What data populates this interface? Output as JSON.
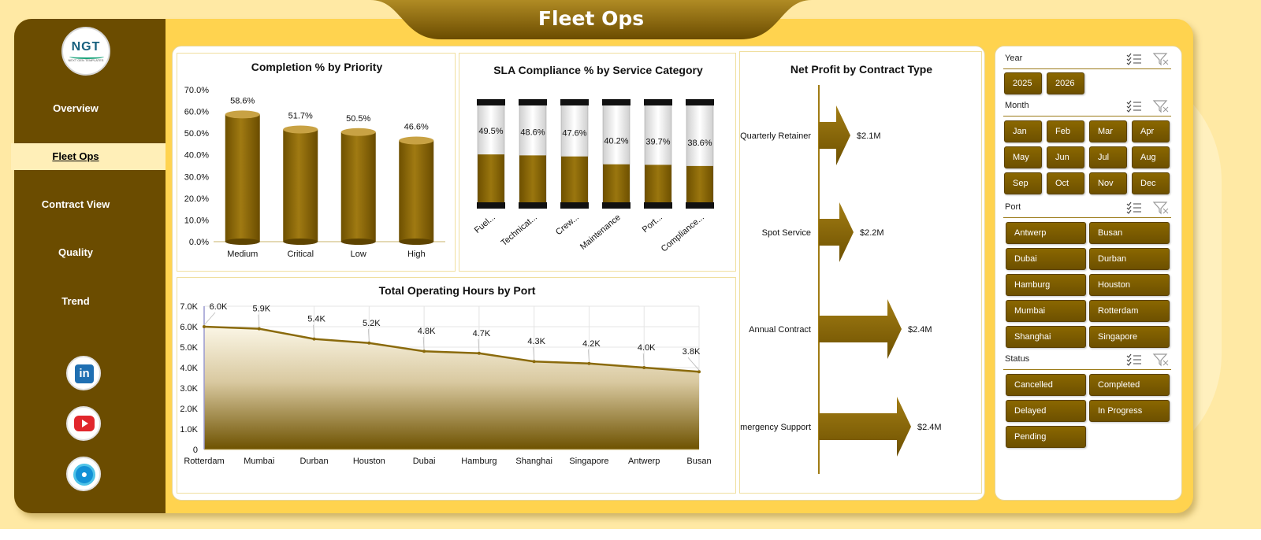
{
  "app": {
    "title": "Fleet Ops",
    "logo_text": "NGT",
    "logo_subtext": "NEXT GEN TEMPLATES"
  },
  "colors": {
    "sidebar": "#6b4c00",
    "accent": "#ffd34f",
    "bar_gold": "#8a6500",
    "button": "#7a5a00"
  },
  "sidebar": {
    "items": [
      {
        "label": "Overview",
        "active": false
      },
      {
        "label": "Fleet Ops",
        "active": true
      },
      {
        "label": "Contract View",
        "active": false
      },
      {
        "label": "Quality",
        "active": false
      },
      {
        "label": "Trend",
        "active": false
      }
    ],
    "social": [
      {
        "icon": "linkedin-icon",
        "glyph": "in"
      },
      {
        "icon": "youtube-icon"
      },
      {
        "icon": "globe-icon"
      }
    ]
  },
  "chart_data": [
    {
      "id": "priority",
      "type": "bar",
      "title": "Completion % by Priority",
      "categories": [
        "Medium",
        "Critical",
        "Low",
        "High"
      ],
      "values": [
        58.6,
        51.7,
        50.5,
        46.6
      ],
      "data_labels": [
        "58.6%",
        "51.7%",
        "50.5%",
        "46.6%"
      ],
      "ylim": [
        0,
        70
      ],
      "yticks": [
        "0.0%",
        "10.0%",
        "20.0%",
        "30.0%",
        "40.0%",
        "50.0%",
        "60.0%",
        "70.0%"
      ]
    },
    {
      "id": "sla",
      "type": "bar",
      "title": "SLA Compliance % by Service Category",
      "categories": [
        "Fuel...",
        "Technicat...",
        "Crew...",
        "Maintenance",
        "Port...",
        "Compliance..."
      ],
      "values": [
        49.5,
        48.6,
        47.6,
        40.2,
        39.7,
        38.6
      ],
      "data_labels": [
        "49.5%",
        "48.6%",
        "47.6%",
        "40.2%",
        "39.7%",
        "38.6%"
      ],
      "ylim": [
        0,
        100
      ]
    },
    {
      "id": "profit",
      "type": "bar",
      "title": "Net Profit by Contract Type",
      "categories": [
        "Quarterly Retainer",
        "Spot Service",
        "Annual Contract",
        "Emergency Support"
      ],
      "values": [
        2.1,
        2.2,
        2.4,
        2.4
      ],
      "data_labels": [
        "$2.1M",
        "$2.2M",
        "$2.4M",
        "$2.4M"
      ],
      "unit": "$M"
    },
    {
      "id": "hours",
      "type": "area",
      "title": "Total Operating Hours by Port",
      "categories": [
        "Rotterdam",
        "Mumbai",
        "Durban",
        "Houston",
        "Dubai",
        "Hamburg",
        "Shanghai",
        "Singapore",
        "Antwerp",
        "Busan"
      ],
      "values": [
        6.0,
        5.9,
        5.4,
        5.2,
        4.8,
        4.7,
        4.3,
        4.2,
        4.0,
        3.8
      ],
      "data_labels": [
        "6.0K",
        "5.9K",
        "5.4K",
        "5.2K",
        "4.8K",
        "4.7K",
        "4.3K",
        "4.2K",
        "4.0K",
        "3.8K"
      ],
      "ylim": [
        0,
        7
      ],
      "yticks": [
        "0",
        "1.0K",
        "2.0K",
        "3.0K",
        "4.0K",
        "5.0K",
        "6.0K",
        "7.0K"
      ],
      "grid": true
    }
  ],
  "filters": [
    {
      "title": "Year",
      "options": [
        "2025",
        "2026"
      ]
    },
    {
      "title": "Month",
      "options": [
        "Jan",
        "Feb",
        "Mar",
        "Apr",
        "May",
        "Jun",
        "Jul",
        "Aug",
        "Sep",
        "Oct",
        "Nov",
        "Dec"
      ]
    },
    {
      "title": "Port",
      "options": [
        "Antwerp",
        "Busan",
        "Dubai",
        "Durban",
        "Hamburg",
        "Houston",
        "Mumbai",
        "Rotterdam",
        "Shanghai",
        "Singapore"
      ]
    },
    {
      "title": "Status",
      "options": [
        "Cancelled",
        "Completed",
        "Delayed",
        "In Progress",
        "Pending"
      ]
    }
  ]
}
